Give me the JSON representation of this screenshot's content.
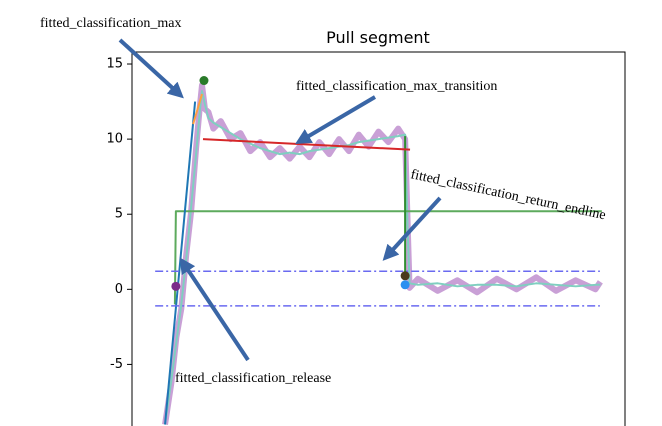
{
  "chart_data": {
    "type": "line",
    "title": "Pull segment",
    "ylim": [
      -9.1,
      15.8
    ],
    "yticks": [
      -5,
      0,
      5,
      10,
      15
    ],
    "xlim": [
      0,
      100
    ],
    "x": [
      6.7,
      8,
      9,
      10,
      11,
      12,
      13,
      13.8,
      14.2,
      14.8,
      15.5,
      16.5,
      18,
      20,
      22,
      24,
      26,
      28,
      30,
      32,
      34,
      36,
      38,
      40,
      42,
      44,
      46,
      48,
      50,
      52,
      54,
      55.4,
      55.9,
      56.3,
      58,
      62,
      66,
      70,
      74,
      78,
      82,
      86,
      90,
      94,
      95
    ],
    "series": [
      {
        "color": "#c9a0d6",
        "width": 6,
        "values": [
          -9,
          -6.2,
          -3.2,
          -1.3,
          2.3,
          5.2,
          9.4,
          12.3,
          13.6,
          12.0,
          11.8,
          10.7,
          11.2,
          10.0,
          10.4,
          9.2,
          9.8,
          8.8,
          9.4,
          8.7,
          9.5,
          8.8,
          9.8,
          9.0,
          10.0,
          9.2,
          10.3,
          9.5,
          10.5,
          9.8,
          10.7,
          10.0,
          4.5,
          0.1,
          0.7,
          -0.1,
          0.6,
          -0.2,
          0.7,
          0.0,
          0.8,
          -0.1,
          0.6,
          0.0,
          0.5
        ]
      },
      {
        "color": "#7fcfc0",
        "width": 2,
        "values": [
          -9,
          -6,
          -3.5,
          -1,
          2,
          5.5,
          9,
          12,
          13.2,
          12.3,
          11.4,
          11.1,
          10.8,
          10.4,
          10,
          9.7,
          9.4,
          9.2,
          9.0,
          9.1,
          9.0,
          9.2,
          9.3,
          9.4,
          9.5,
          9.6,
          9.8,
          9.9,
          10.0,
          10.1,
          10.2,
          10.3,
          4,
          0.4,
          0.3,
          0.4,
          0.2,
          0.3,
          0.3,
          0.2,
          0.4,
          0.3,
          0.2,
          0.3,
          0.3
        ]
      },
      {
        "color": "#5daa5d",
        "width": 2,
        "x": [
          8.7,
          8.9,
          95.3
        ],
        "values": [
          -1,
          5.2,
          5.2
        ]
      },
      {
        "color": "#2f8f2f",
        "width": 2,
        "x": [
          55.4,
          55.4
        ],
        "values": [
          10.2,
          0.9
        ]
      },
      {
        "color": "#d62728",
        "width": 2,
        "x": [
          14.4,
          56.4
        ],
        "values": [
          10.0,
          9.3
        ]
      },
      {
        "color": "#1f77b4",
        "width": 2,
        "x": [
          6.7,
          12.8
        ],
        "values": [
          -9,
          12.5
        ]
      },
      {
        "color": "#ff9f40",
        "width": 2,
        "x": [
          12.4,
          14.2
        ],
        "values": [
          11,
          13
        ]
      },
      {
        "color": "#6a6af0",
        "width": 1.5,
        "dash": "8 3 2 3",
        "x": [
          4.7,
          94.9
        ],
        "values": [
          1.2,
          1.2
        ]
      },
      {
        "color": "#6a6af0",
        "width": 1.5,
        "dash": "8 3 2 3",
        "x": [
          4.7,
          94.9
        ],
        "values": [
          -1.1,
          -1.1
        ]
      }
    ],
    "points": [
      {
        "x": 14.6,
        "y": 13.9,
        "color": "#2a7a2a"
      },
      {
        "x": 8.9,
        "y": 0.2,
        "color": "#7b2a8a"
      },
      {
        "x": 55.4,
        "y": 0.9,
        "color": "#4a3a1a"
      },
      {
        "x": 55.4,
        "y": 0.3,
        "color": "#2a8ff0"
      }
    ],
    "annotations": [
      "fitted_classification_max",
      "fitted_classification_max_transition",
      "fitted_classification_return_endline",
      "fitted_classification_release"
    ]
  }
}
